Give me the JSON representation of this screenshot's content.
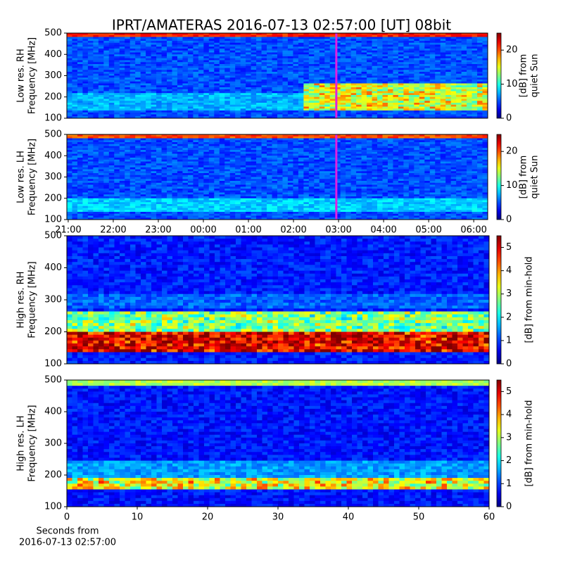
{
  "title": "IPRT/AMATERAS 2016-07-13 02:57:00 [UT]   08bit",
  "chart_data": [
    {
      "type": "heatmap",
      "ylabel": [
        "Low res. RH",
        "Frequency [MHz]"
      ],
      "xlim": [
        20.97,
        30.31
      ],
      "cursor": 26.95,
      "ylim": [
        100,
        500
      ],
      "yticks": [
        100,
        200,
        300,
        400,
        500
      ],
      "colorbar_label": [
        "[dB] from",
        "quiet Sun"
      ],
      "clim": [
        0,
        25
      ],
      "cticks": [
        0,
        10,
        20
      ],
      "colormap": "jet"
    },
    {
      "type": "heatmap",
      "ylabel": [
        "Low res. LH",
        "Frequency [MHz]"
      ],
      "xlim": [
        20.97,
        30.31
      ],
      "cursor": 26.95,
      "xticks": [
        {
          "value": 21,
          "label": "21:00"
        },
        {
          "value": 22,
          "label": "22:00"
        },
        {
          "value": 23,
          "label": "23:00"
        },
        {
          "value": 24,
          "label": "00:00"
        },
        {
          "value": 25,
          "label": "01:00"
        },
        {
          "value": 26,
          "label": "02:00"
        },
        {
          "value": 27,
          "label": "03:00"
        },
        {
          "value": 28,
          "label": "04:00"
        },
        {
          "value": 29,
          "label": "05:00"
        },
        {
          "value": 30,
          "label": "06:00"
        }
      ],
      "ylim": [
        100,
        500
      ],
      "yticks": [
        100,
        200,
        300,
        400,
        500
      ],
      "colorbar_label": [
        "[dB] from",
        "quiet Sun"
      ],
      "clim": [
        0,
        25
      ],
      "cticks": [
        0,
        10,
        20
      ],
      "colormap": "jet"
    },
    {
      "type": "heatmap",
      "ylabel": [
        "High res. RH",
        "Frequency [MHz]"
      ],
      "xlim": [
        0,
        60
      ],
      "ylim": [
        100,
        500
      ],
      "yticks": [
        100,
        200,
        300,
        400,
        500
      ],
      "colorbar_label": [
        "[dB] from min-hold"
      ],
      "clim": [
        0,
        5.5
      ],
      "cticks": [
        0,
        1,
        2,
        3,
        4,
        5
      ],
      "colormap": "jet"
    },
    {
      "type": "heatmap",
      "ylabel": [
        "High res. LH",
        "Frequency [MHz]"
      ],
      "xlim": [
        0,
        60
      ],
      "xticks": [
        0,
        10,
        20,
        30,
        40,
        50,
        60
      ],
      "xlabel": [
        "Seconds from",
        "2016-07-13 02:57:00"
      ],
      "ylim": [
        100,
        500
      ],
      "yticks": [
        100,
        200,
        300,
        400,
        500
      ],
      "colorbar_label": [
        "[dB] from min-hold"
      ],
      "clim": [
        0,
        5.5
      ],
      "cticks": [
        0,
        1,
        2,
        3,
        4,
        5
      ],
      "colormap": "jet"
    }
  ]
}
